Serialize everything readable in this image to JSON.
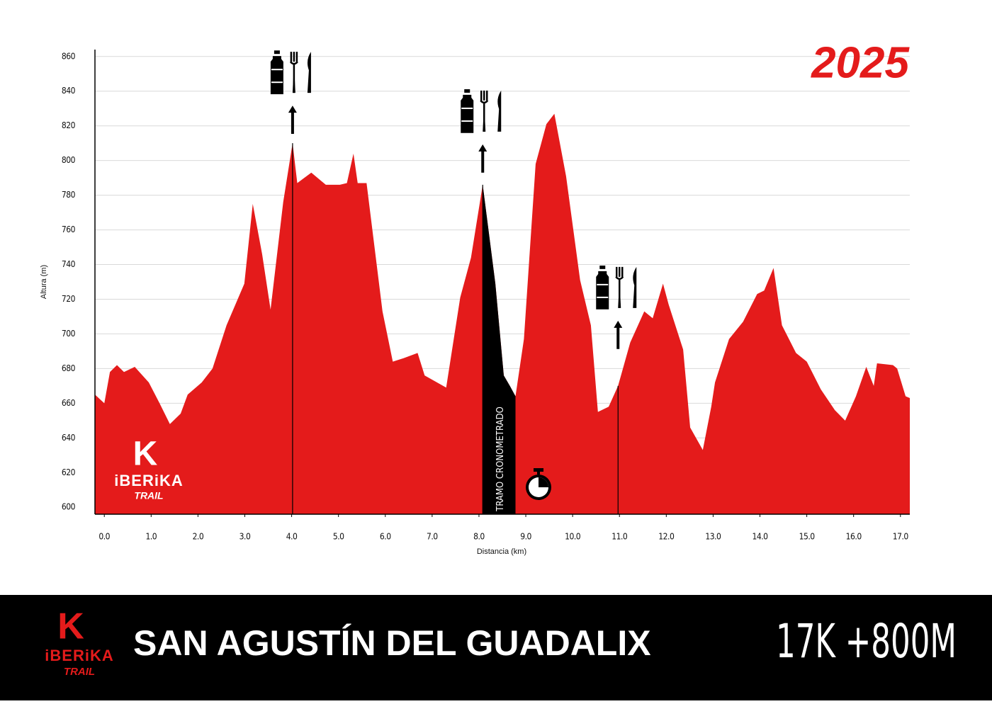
{
  "chart_data": {
    "type": "area",
    "title": "2025",
    "xlabel": "Distancia (km)",
    "ylabel": "Altura (m)",
    "color": "#e41b1b",
    "x": [
      -0.2,
      0.0,
      0.12,
      0.27,
      0.42,
      0.65,
      0.95,
      1.18,
      1.4,
      1.63,
      1.78,
      2.08,
      2.31,
      2.61,
      2.99,
      3.17,
      3.37,
      3.55,
      3.82,
      4.02,
      4.12,
      4.42,
      4.73,
      5.03,
      5.18,
      5.32,
      5.41,
      5.6,
      5.94,
      6.16,
      6.39,
      6.69,
      6.84,
      7.3,
      7.6,
      7.83,
      8.08,
      8.35,
      8.53,
      8.66,
      8.78,
      8.96,
      9.21,
      9.44,
      9.61,
      9.86,
      10.16,
      10.39,
      10.54,
      10.77,
      10.97,
      11.23,
      11.53,
      11.71,
      11.93,
      12.05,
      12.36,
      12.51,
      12.78,
      12.96,
      13.04,
      13.34,
      13.64,
      13.94,
      14.09,
      14.29,
      14.47,
      14.77,
      15.0,
      15.3,
      15.6,
      15.82,
      16.05,
      16.27,
      16.43,
      16.5,
      16.84,
      16.93,
      17.11,
      17.2
    ],
    "values": [
      665,
      660,
      678,
      682,
      678,
      681,
      672,
      660,
      648,
      654,
      665,
      672,
      680,
      705,
      729,
      775,
      746,
      714,
      776,
      810,
      787,
      793,
      786,
      786,
      787,
      804,
      787,
      787,
      713,
      684,
      686,
      689,
      676,
      669,
      721,
      744,
      786,
      729,
      676,
      670,
      664,
      697,
      798,
      821,
      827,
      791,
      731,
      705,
      655,
      658,
      670,
      695,
      713,
      709,
      729,
      717,
      691,
      646,
      633,
      658,
      672,
      697,
      707,
      723,
      725,
      738,
      705,
      689,
      684,
      668,
      656,
      650,
      664,
      681,
      670,
      683,
      682,
      680,
      664,
      663
    ],
    "xlim": [
      -0.2,
      17.2
    ],
    "ylim": [
      596,
      864
    ],
    "xticks": [
      {
        "value": 0,
        "label": "0.0"
      },
      {
        "value": 1,
        "label": "1.0"
      },
      {
        "value": 2,
        "label": "2.0"
      },
      {
        "value": 3,
        "label": "3.0"
      },
      {
        "value": 4,
        "label": "4.0"
      },
      {
        "value": 5,
        "label": "5.0"
      },
      {
        "value": 6,
        "label": "6.0"
      },
      {
        "value": 7,
        "label": "7.0"
      },
      {
        "value": 8,
        "label": "8.0"
      },
      {
        "value": 9,
        "label": "9.0"
      },
      {
        "value": 10,
        "label": "10.0"
      },
      {
        "value": 11,
        "label": "11.0"
      },
      {
        "value": 12,
        "label": "12.0"
      },
      {
        "value": 13,
        "label": "13.0"
      },
      {
        "value": 14,
        "label": "14.0"
      },
      {
        "value": 15,
        "label": "15.0"
      },
      {
        "value": 16,
        "label": "16.0"
      },
      {
        "value": 17,
        "label": "17.0"
      }
    ],
    "yticks": [
      600,
      620,
      640,
      660,
      680,
      700,
      720,
      740,
      760,
      780,
      800,
      820,
      840,
      860
    ],
    "grid": true,
    "timed_section": {
      "label": "TRAMO CRONOMETRADO",
      "x": [
        8.08,
        8.78
      ],
      "color": "#000000"
    },
    "aid_stations": [
      4.02,
      8.08,
      10.97
    ]
  },
  "logo": {
    "name": "iBERiKA",
    "tag": "TRAIL"
  },
  "footer": {
    "title": "SAN AGUSTÍN DEL GUADALIX",
    "stats": "17K +800M"
  }
}
